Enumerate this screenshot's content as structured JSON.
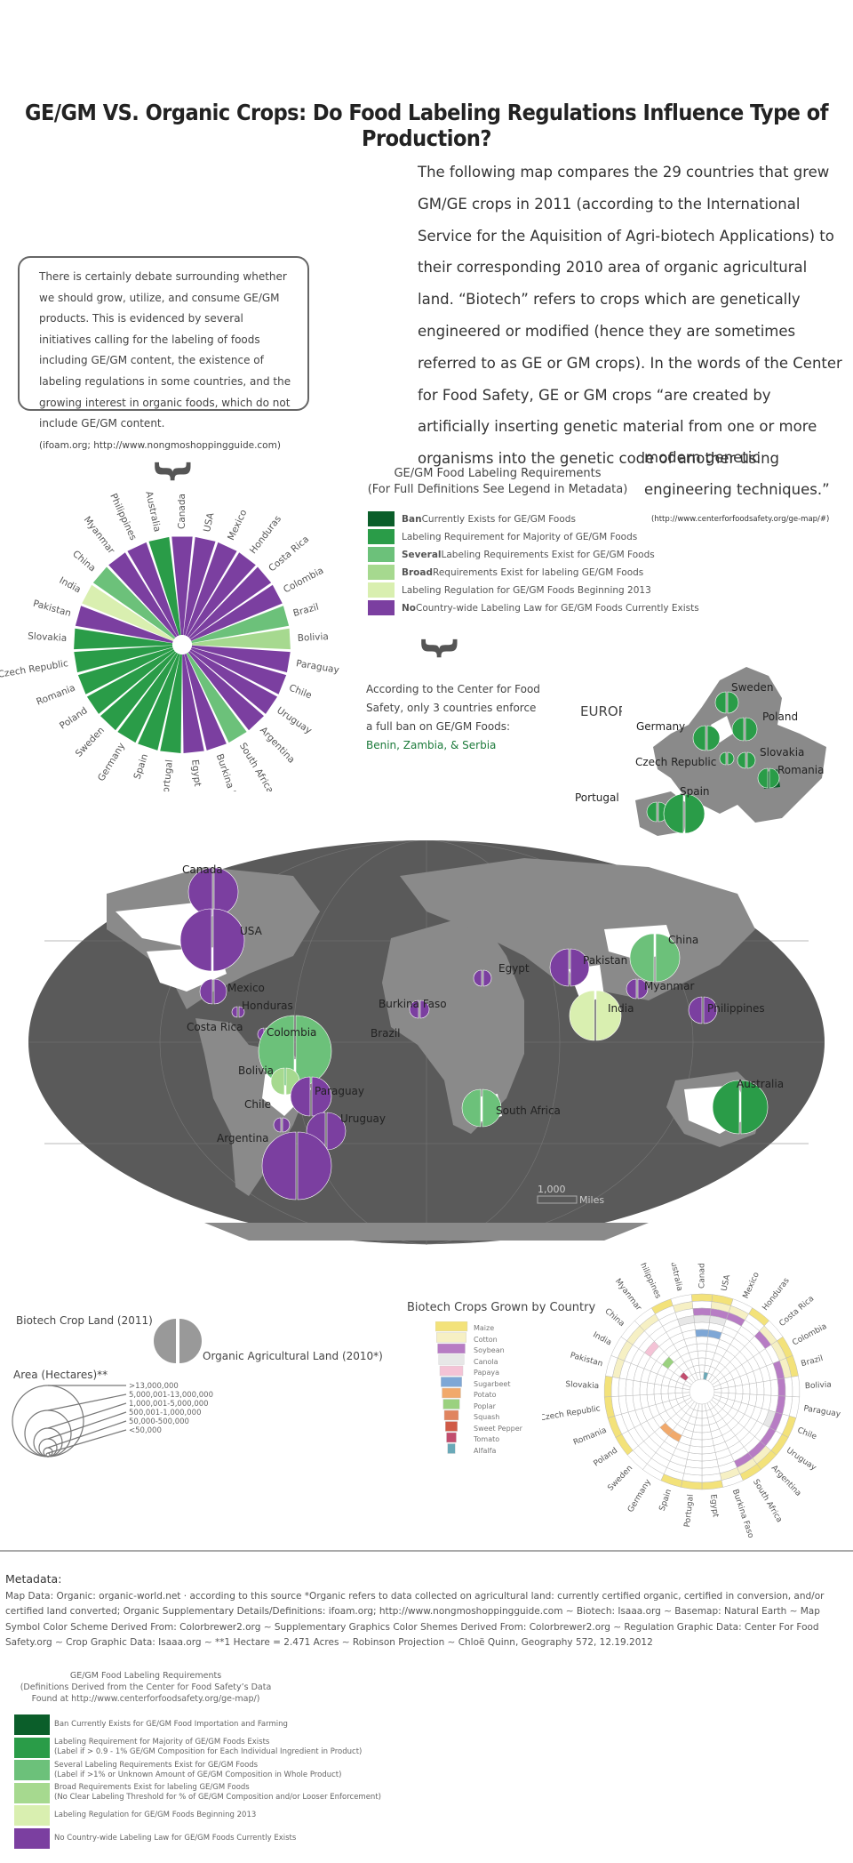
{
  "title": "GE/GM VS. Organic Crops: Do Food Labeling Regulations Influence Type of Production?",
  "intro": {
    "text": "The following map compares the 29 countries that grew GM/GE crops in 2011 (according to the International Service for the Aquisition of Agri-biotech Applications) to their corresponding 2010 area of organic agricultural land. “Biotech” refers to crops which are genetically engineered or modified (hence they are sometimes referred to as GE or GM crops). In the words of the Center for Food Safety, GE or GM crops “are created by artificially inserting genetic material from one or more organisms into the genetic code of another using",
    "tail": "modern genetic engineering techniques.”",
    "source": "(http://www.centerforfoodsafety.org/ge-map/#)"
  },
  "debate": {
    "text": "There is certainly debate surrounding whether we should grow, utilize, and consume GE/GM products. This is evidenced by several initiatives calling for the labeling of foods including GE/GM content, the existence of labeling regulations in some countries, and the growing interest in organic foods, which do not include GE/GM content.",
    "source": "(ifoam.org; http://www.nongmoshoppingguide.com)"
  },
  "colors": {
    "ban": "#0b5e2a",
    "majority": "#2a9c48",
    "several": "#6cc17a",
    "broad": "#a6d98f",
    "regulation_2013": "#d9efb0",
    "no_law": "#7b3fa0",
    "map_land": "#8a8a8a",
    "map_ocean": "#5a5a5a"
  },
  "labeling_legend": {
    "title": "GE/GM Food Labeling Requirements",
    "subtitle": "(For Full Definitions See Legend in Metadata)",
    "items": [
      {
        "bold": "Ban",
        "rest": " Currently Exists for GE/GM Foods",
        "color": "#0b5e2a"
      },
      {
        "bold": "",
        "rest": "Labeling Requirement for Majority of GE/GM Foods",
        "color": "#2a9c48"
      },
      {
        "bold": "Several",
        "rest": " Labeling Requirements Exist for GE/GM Foods",
        "color": "#6cc17a"
      },
      {
        "bold": "Broad",
        "rest": " Requirements Exist for labeling GE/GM Foods",
        "color": "#a6d98f"
      },
      {
        "bold": "",
        "rest": "Labeling Regulation for GE/GM Foods Beginning 2013",
        "color": "#d9efb0"
      },
      {
        "bold": "No",
        "rest": " Country-wide Labeling Law for GE/GM Foods Currently Exists",
        "color": "#7b3fa0"
      }
    ]
  },
  "ban_note": {
    "text": "According to the Center for Food Safety, only 3 countries enforce a full ban on GE/GM Foods:",
    "countries": "Benin, Zambia, & Serbia"
  },
  "radial_countries": [
    {
      "name": "Canada",
      "cat": "no_law"
    },
    {
      "name": "USA",
      "cat": "no_law"
    },
    {
      "name": "Mexico",
      "cat": "no_law"
    },
    {
      "name": "Honduras",
      "cat": "no_law"
    },
    {
      "name": "Costa Rica",
      "cat": "no_law"
    },
    {
      "name": "Colombia",
      "cat": "no_law"
    },
    {
      "name": "Brazil",
      "cat": "several"
    },
    {
      "name": "Bolivia",
      "cat": "broad"
    },
    {
      "name": "Paraguay",
      "cat": "no_law"
    },
    {
      "name": "Chile",
      "cat": "no_law"
    },
    {
      "name": "Uruguay",
      "cat": "no_law"
    },
    {
      "name": "Argentina",
      "cat": "no_law"
    },
    {
      "name": "South Africa",
      "cat": "several"
    },
    {
      "name": "Burkina Faso",
      "cat": "no_law"
    },
    {
      "name": "Egypt",
      "cat": "no_law"
    },
    {
      "name": "Portugal",
      "cat": "majority"
    },
    {
      "name": "Spain",
      "cat": "majority"
    },
    {
      "name": "Germany",
      "cat": "majority"
    },
    {
      "name": "Sweden",
      "cat": "majority"
    },
    {
      "name": "Poland",
      "cat": "majority"
    },
    {
      "name": "Romania",
      "cat": "majority"
    },
    {
      "name": "Czech Republic",
      "cat": "majority"
    },
    {
      "name": "Slovakia",
      "cat": "majority"
    },
    {
      "name": "Pakistan",
      "cat": "no_law"
    },
    {
      "name": "India",
      "cat": "regulation_2013"
    },
    {
      "name": "China",
      "cat": "several"
    },
    {
      "name": "Myanmar",
      "cat": "no_law"
    },
    {
      "name": "Philippines",
      "cat": "no_law"
    },
    {
      "name": "Australia",
      "cat": "majority"
    }
  ],
  "europe": {
    "label": "EUROPE",
    "countries": [
      "Sweden",
      "Poland",
      "Germany",
      "Slovakia",
      "Czech Republic",
      "Romania",
      "Portugal",
      "Spain"
    ]
  },
  "world_map": {
    "labels": [
      "Canada",
      "USA",
      "Mexico",
      "Honduras",
      "Costa Rica",
      "Colombia",
      "Bolivia",
      "Chile",
      "Paraguay",
      "Brazil",
      "Uruguay",
      "Argentina",
      "Burkina Faso",
      "Egypt",
      "South Africa",
      "Pakistan",
      "China",
      "Myanmar",
      "India",
      "Philippines",
      "Australia"
    ],
    "scale_value": "1,000",
    "scale_unit": "Miles"
  },
  "symbol_legend": {
    "biotech": "Biotech Crop Land (2011)",
    "organic": "Organic Agricultural Land (2010*)",
    "area_title": "Area (Hectares)**",
    "area_classes": [
      ">13,000,000",
      "5,000,001-13,000,000",
      "1,000,001-5,000,000",
      "500,001-1,000,000",
      "50,000-500,000",
      "<50,000"
    ]
  },
  "crops_legend": {
    "title": "Biotech Crops Grown by Country",
    "items": [
      {
        "name": "Maize",
        "color": "#f3e27a"
      },
      {
        "name": "Cotton",
        "color": "#f6f0c4"
      },
      {
        "name": "Soybean",
        "color": "#b77cc4"
      },
      {
        "name": "Canola",
        "color": "#e7e7e7"
      },
      {
        "name": "Papaya",
        "color": "#f4c3d6"
      },
      {
        "name": "Sugarbeet",
        "color": "#7ea7d6"
      },
      {
        "name": "Potato",
        "color": "#f1a96b"
      },
      {
        "name": "Poplar",
        "color": "#9ad17f"
      },
      {
        "name": "Squash",
        "color": "#e0845f"
      },
      {
        "name": "Sweet Pepper",
        "color": "#d05a46"
      },
      {
        "name": "Tomato",
        "color": "#c24d6e"
      },
      {
        "name": "Alfalfa",
        "color": "#6aa9b8"
      }
    ]
  },
  "metadata": {
    "heading": "Metadata:",
    "text": "Map Data: Organic: organic-world.net · according to this source *Organic refers to data collected on agricultural land: currently certified organic, certified in conversion, and/or certified land converted; Organic Supplementary Details/Definitions: ifoam.org; http://www.nongmoshoppingguide.com ∼ Biotech: Isaaa.org ∼ Basemap: Natural Earth ∼ Map Symbol Color Scheme Derived From: Colorbrewer2.org ∼ Supplementary Graphics Color Shemes Derived From: Colorbrewer2.org ∼ Regulation Graphic Data: Center For Food Safety.org ∼ Crop Graphic Data: Isaaa.org ∼ **1 Hectare = 2.471 Acres ∼ Robinson Projection ∼ Chloë Quinn, Geography 572, 12.19.2012",
    "legend_title": "GE/GM Food Labeling Requirements",
    "legend_subtitle": "(Definitions Derived from the Center for Food Safety’s Data Found at http://www.centerforfoodsafety.org/ge-map/)",
    "legend_items": [
      {
        "line1": "Ban Currently Exists for GE/GM Food Importation and Farming",
        "line2": "",
        "color": "#0b5e2a"
      },
      {
        "line1": "Labeling Requirement for Majority of GE/GM Foods Exists",
        "line2": "(Label if > 0.9 - 1% GE/GM Composition for Each Individual Ingredient in Product)",
        "color": "#2a9c48"
      },
      {
        "line1": "Several Labeling Requirements Exist for GE/GM Foods",
        "line2": "(Label if >1% or Unknown Amount of GE/GM Composition in Whole Product)",
        "color": "#6cc17a"
      },
      {
        "line1": "Broad Requirements Exist for labeling GE/GM Foods",
        "line2": "(No Clear Labeling Threshold for % of GE/GM Composition and/or Looser Enforcement)",
        "color": "#a6d98f"
      },
      {
        "line1": "Labeling Regulation for GE/GM Foods Beginning 2013",
        "line2": "",
        "color": "#d9efb0"
      },
      {
        "line1": "No Country-wide Labeling Law for GE/GM Foods Currently Exists",
        "line2": "",
        "color": "#7b3fa0"
      }
    ]
  }
}
